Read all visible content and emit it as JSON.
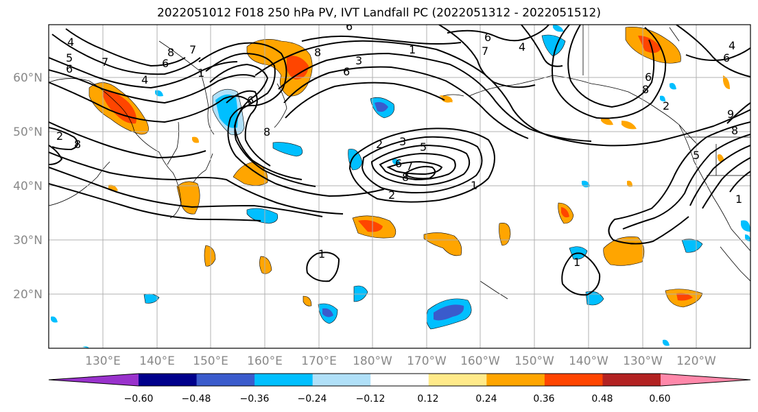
{
  "title": "2022051012 F018 250 hPa PV, IVT Landfall PC (2022051312 - 2022051512)",
  "lon_labels": [
    "130°E",
    "140°E",
    "150°E",
    "160°E",
    "170°E",
    "180°W",
    "170°W",
    "160°W",
    "150°W",
    "140°W",
    "130°W",
    "120°W"
  ],
  "lat_labels": [
    "60°N",
    "50°N",
    "40°N",
    "30°N",
    "20°N"
  ],
  "colorbar": {
    "colors": [
      "#9932CC",
      "#00008B",
      "#3A5BCC",
      "#00BFFF",
      "#B0E0F8",
      "#FFFFFF",
      "#FFEA8A",
      "#FFA500",
      "#FF4500",
      "#B22222",
      "#FF88AA"
    ],
    "tick_labels": [
      "−0.60",
      "−0.48",
      "−0.36",
      "−0.24",
      "−0.12",
      "0.12",
      "0.24",
      "0.36",
      "0.48",
      "0.60"
    ]
  },
  "contour_labels": [
    "4",
    "5",
    "6",
    "7",
    "8",
    "6",
    "8",
    "7",
    "1",
    "4",
    "2",
    "6",
    "8",
    "3",
    "6",
    "6",
    "7",
    "4",
    "1",
    "8",
    "6",
    "8",
    "6",
    "2",
    "3",
    "5",
    "6",
    "7",
    "8",
    "2",
    "1",
    "1",
    "1",
    "8",
    "9",
    "6",
    "4",
    "5",
    "2",
    "1"
  ]
}
